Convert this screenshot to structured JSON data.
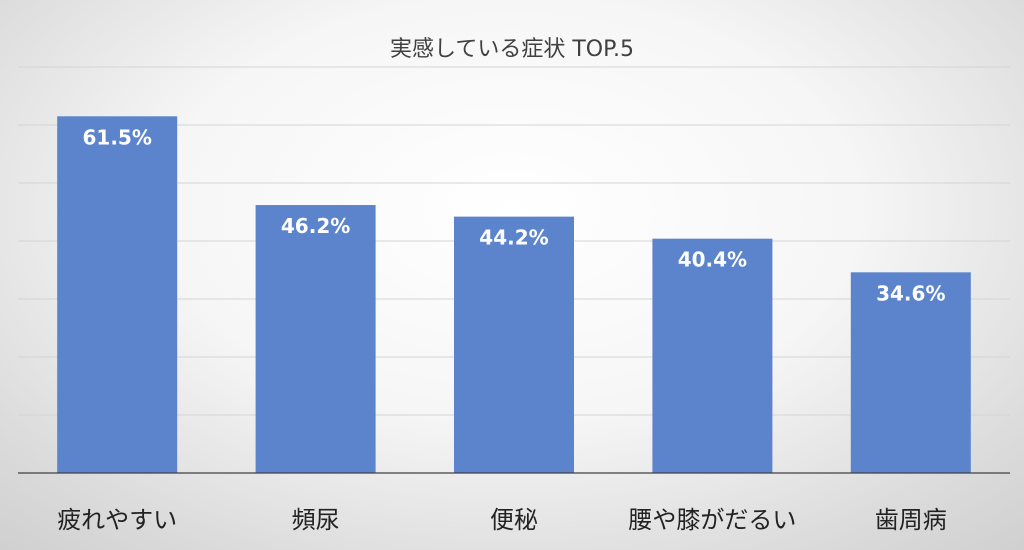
{
  "chart_data": {
    "type": "bar",
    "title": "実感している症状 TOP.5",
    "xlabel": "",
    "ylabel": "",
    "categories": [
      "疲れやすい",
      "頻尿",
      "便秘",
      "腰や膝がだるい",
      "歯周病"
    ],
    "values": [
      61.5,
      46.2,
      44.2,
      40.4,
      34.6
    ],
    "data_labels": [
      "61.5%",
      "46.2%",
      "44.2%",
      "40.4%",
      "34.6%"
    ],
    "unit": "%",
    "ylim": [
      0,
      70
    ],
    "grid": true,
    "legend": "none",
    "colors": {
      "bar": "#5b84cd",
      "grid": "#d4d4d4",
      "axis": "#404040"
    }
  }
}
